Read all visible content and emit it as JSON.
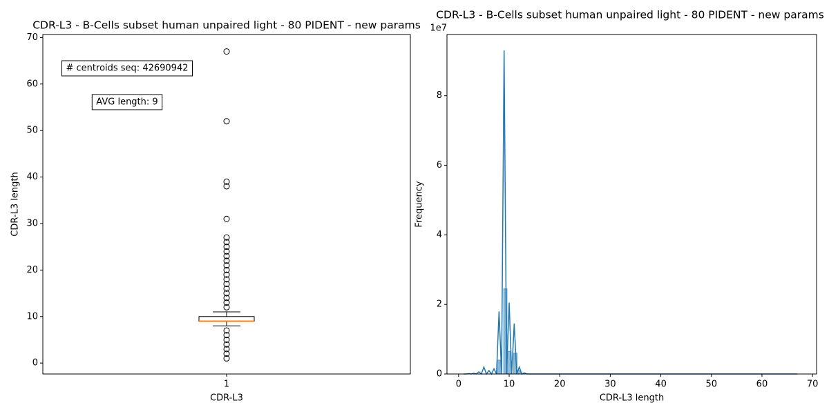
{
  "chart_data": [
    {
      "type": "box",
      "title": "CDR-L3 - B-Cells subset human unpaired light - 80 PIDENT - new params",
      "xlabel": "CDR-L3",
      "ylabel": "CDR-L3 length",
      "categories": [
        "1"
      ],
      "boxes": [
        {
          "whislo": 8,
          "q1": 9,
          "med": 9,
          "q3": 10,
          "whishi": 11,
          "fliers": [
            1,
            2,
            3,
            4,
            5,
            6,
            7,
            12,
            13,
            14,
            15,
            16,
            17,
            18,
            19,
            20,
            21,
            22,
            23,
            24,
            25,
            26,
            27,
            31,
            38,
            39,
            52,
            67
          ]
        }
      ],
      "color": "#000000",
      "median_color": "#ff7f0e",
      "ylim": [
        -2.35,
        70.65
      ],
      "yticks": [
        0,
        10,
        20,
        30,
        40,
        50,
        60,
        70
      ],
      "annotations": [
        "# centroids seq: 42690942",
        "AVG length: 9"
      ]
    },
    {
      "type": "line",
      "title": "CDR-L3 - B-Cells subset human unpaired light - 80 PIDENT - new params",
      "xlabel": "CDR-L3 length",
      "ylabel": "Frequency",
      "y_offset_label": "1e7",
      "x": [
        1,
        1.5,
        2,
        2.5,
        3,
        3.5,
        4,
        4.5,
        5,
        5.5,
        6,
        6.5,
        7,
        7.5,
        8,
        8.5,
        9,
        9.5,
        10,
        10.5,
        11,
        11.5,
        12,
        12.5,
        13,
        13.5,
        67
      ],
      "values": [
        0,
        0,
        100000,
        0,
        200000,
        0,
        600000,
        0,
        2000000,
        0,
        1000000,
        0,
        1500000,
        0,
        18000000,
        0,
        93000000,
        0,
        20500000,
        0,
        14500000,
        0,
        2000000,
        0,
        300000,
        0,
        0
      ],
      "color": "#1f77b4",
      "histogram": {
        "bins": [
          7.6,
          8.26,
          8.92,
          9.58,
          10.24,
          10.9,
          11.56,
          12.22
        ],
        "counts": [
          4000000,
          0,
          24500000,
          6500000,
          0,
          6000000,
          1000000
        ],
        "color": "#1f77b4"
      },
      "xlim": [
        -2.3,
        70.8
      ],
      "xticks": [
        0,
        10,
        20,
        30,
        40,
        50,
        60,
        70
      ],
      "ylim": [
        0,
        97600000
      ],
      "yticks": [
        {
          "value": 0,
          "label": "0"
        },
        {
          "value": 20000000,
          "label": "2"
        },
        {
          "value": 40000000,
          "label": "4"
        },
        {
          "value": 60000000,
          "label": "6"
        },
        {
          "value": 80000000,
          "label": "8"
        }
      ]
    }
  ]
}
